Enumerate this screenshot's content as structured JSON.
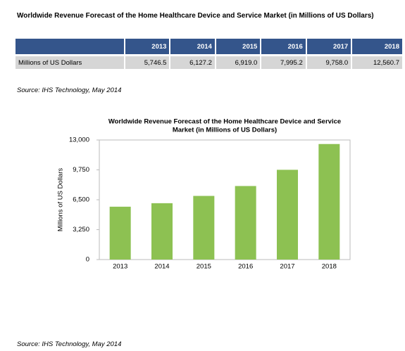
{
  "header": {
    "title": "Worldwide Revenue Forecast of the Home Healthcare Device and Service Market (in Millions of US Dollars)"
  },
  "table": {
    "columns": [
      "2013",
      "2014",
      "2015",
      "2016",
      "2017",
      "2018"
    ],
    "rows": [
      [
        "Millions of US Dollars",
        "5,746.5",
        "6,127.2",
        "6,919.0",
        "7,995.2",
        "9,758.0",
        "12,560.7"
      ]
    ]
  },
  "source_top": "Source: IHS Technology, May 2014",
  "chart_data": {
    "type": "bar",
    "title": [
      "Worldwide  Revenue Forecast of the Home Healthcare Device and Service",
      "Market (in Millions of US Dollars)"
    ],
    "y_label": "Millions of US Dollars",
    "categories": [
      "2013",
      "2014",
      "2015",
      "2016",
      "2017",
      "2018"
    ],
    "values": [
      5746.5,
      6127.2,
      6919.0,
      7995.2,
      9758.0,
      12560.7
    ],
    "color": "#8dc152",
    "ylim": [
      0,
      13000
    ],
    "yticks": [
      0,
      {
        "value": 3250,
        "label": "3,250"
      },
      {
        "value": 6500,
        "label": "6,500"
      },
      {
        "value": 9750,
        "label": "9,750"
      },
      {
        "value": 13000,
        "label": "13,000"
      }
    ]
  },
  "source_bottom": "Source: IHS Technology, May 2014"
}
